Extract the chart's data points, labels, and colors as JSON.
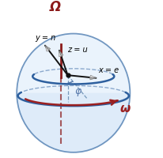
{
  "sphere_color": "#d4e5f7",
  "sphere_color2": "#e8f2fc",
  "sphere_edge_color": "#3a6ea8",
  "ring_color": "#2d5f9e",
  "sphere_alpha": 0.85,
  "omega_big_color": "#8b1a1a",
  "omega_small_color": "#9b2020",
  "axis_color": "#111111",
  "dashed_color": "#7799bb",
  "phi_color": "#5577aa",
  "phi_label": "φ",
  "omega_big_label": "Ω",
  "omega_small_label": "ω",
  "x_label": "x = e",
  "y_label": "y = n",
  "z_label": "z = u",
  "figsize": [
    2.07,
    2.0
  ],
  "dpi": 100
}
